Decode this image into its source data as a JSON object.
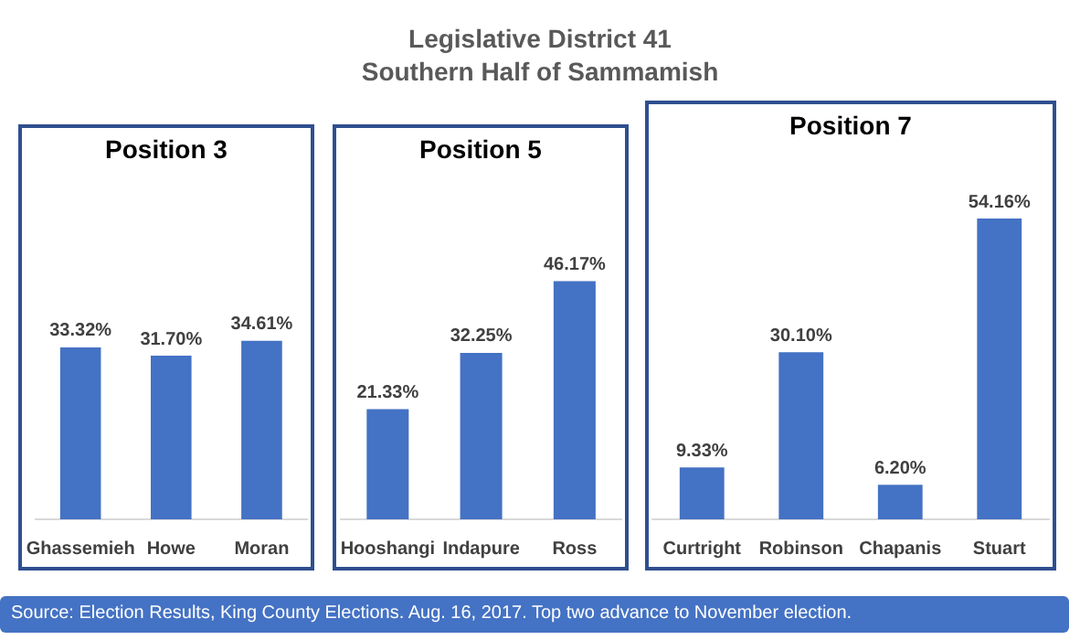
{
  "chart_data": [
    {
      "type": "bar",
      "title": "Position 3",
      "categories": [
        "Ghassemieh",
        "Howe",
        "Moran"
      ],
      "values": [
        33.32,
        31.7,
        34.61
      ],
      "value_labels": [
        "33.32%",
        "31.70%",
        "34.61%"
      ],
      "color": "#4472c4",
      "tick_labels": "x",
      "annotations": [
        "Legislative District 41",
        "Southern Half of Sammamish",
        "Source: Election Results, King County Elections. Aug. 16, 2017. Top two advance to November election."
      ]
    },
    {
      "type": "bar",
      "title": "Position 5",
      "categories": [
        "Hooshangi",
        "Indapure",
        "Ross"
      ],
      "values": [
        21.33,
        32.25,
        46.17
      ],
      "value_labels": [
        "21.33%",
        "32.25%",
        "46.17%"
      ],
      "color": "#4472c4",
      "tick_labels": "x"
    },
    {
      "type": "bar",
      "title": "Position 7",
      "categories": [
        "Curtright",
        "Robinson",
        "Chapanis",
        "Stuart"
      ],
      "values": [
        9.33,
        30.1,
        6.2,
        54.16
      ],
      "value_labels": [
        "9.33%",
        "30.10%",
        "6.20%",
        "54.16%"
      ],
      "color": "#4472c4",
      "tick_labels": "x"
    }
  ]
}
